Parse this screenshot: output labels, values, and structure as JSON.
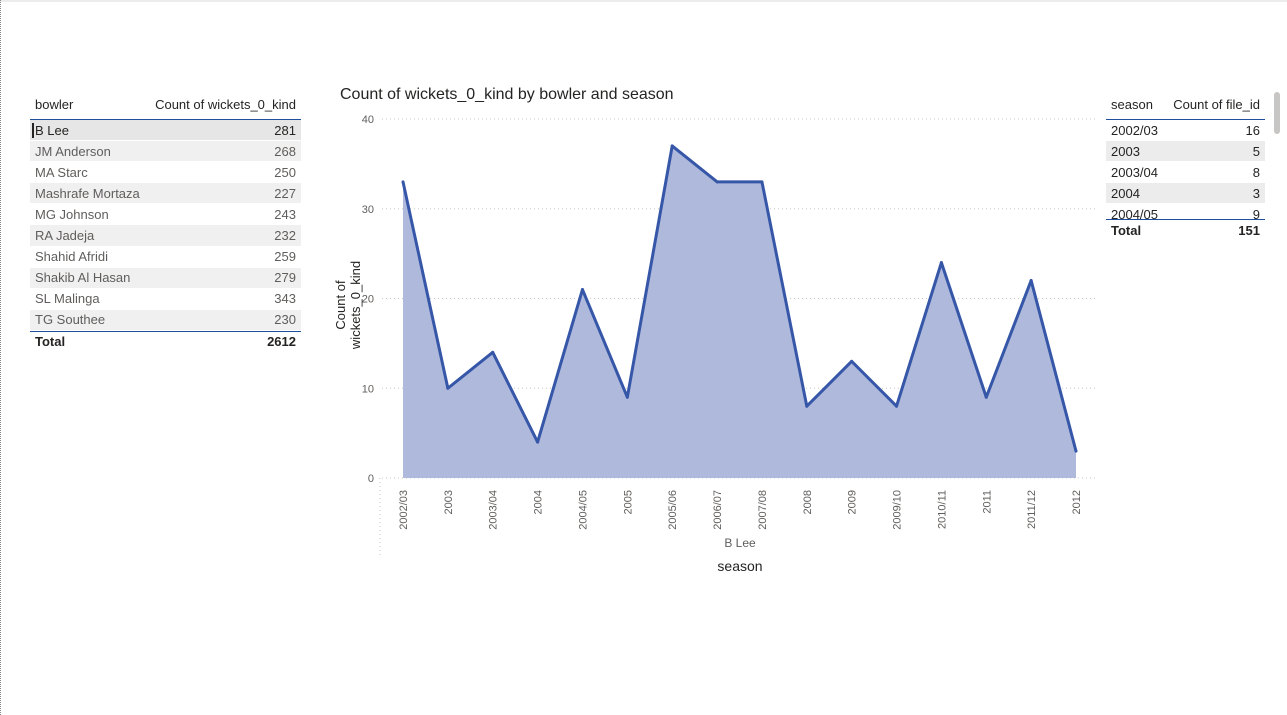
{
  "left_table": {
    "col_bowler": "bowler",
    "col_count": "Count of wickets_0_kind",
    "rows": [
      {
        "name": "B Lee",
        "value": "281"
      },
      {
        "name": "JM Anderson",
        "value": "268"
      },
      {
        "name": "MA Starc",
        "value": "250"
      },
      {
        "name": "Mashrafe Mortaza",
        "value": "227"
      },
      {
        "name": "MG Johnson",
        "value": "243"
      },
      {
        "name": "RA Jadeja",
        "value": "232"
      },
      {
        "name": "Shahid Afridi",
        "value": "259"
      },
      {
        "name": "Shakib Al Hasan",
        "value": "279"
      },
      {
        "name": "SL Malinga",
        "value": "343"
      },
      {
        "name": "TG Southee",
        "value": "230"
      }
    ],
    "total_label": "Total",
    "total_value": "2612"
  },
  "right_table": {
    "col_season": "season",
    "col_count": "Count of file_id",
    "rows": [
      {
        "season": "2002/03",
        "value": "16"
      },
      {
        "season": "2003",
        "value": "5"
      },
      {
        "season": "2003/04",
        "value": "8"
      },
      {
        "season": "2004",
        "value": "3"
      },
      {
        "season": "2004/05",
        "value": "9"
      }
    ],
    "total_label": "Total",
    "total_value": "151"
  },
  "chart_data": {
    "type": "area",
    "title": "Count of wickets_0_kind by bowler and season",
    "xlabel": "season",
    "ylabel": "Count of wickets_0_kind",
    "x_subtitle": "B Lee",
    "categories": [
      "2002/03",
      "2003",
      "2003/04",
      "2004",
      "2004/05",
      "2005",
      "2005/06",
      "2006/07",
      "2007/08",
      "2008",
      "2009",
      "2009/10",
      "2010/11",
      "2011",
      "2011/12",
      "2012"
    ],
    "series": [
      {
        "values": [
          33,
          10,
          14,
          4,
          21,
          9,
          37,
          33,
          33,
          8,
          13,
          8,
          24,
          9,
          22,
          3
        ]
      }
    ],
    "ylim": [
      0,
      40
    ],
    "yticks": [
      0,
      10,
      20,
      30,
      40
    ],
    "grid": true,
    "colors": {
      "line": "#3656a8",
      "fill": "#aeb9dc"
    }
  }
}
